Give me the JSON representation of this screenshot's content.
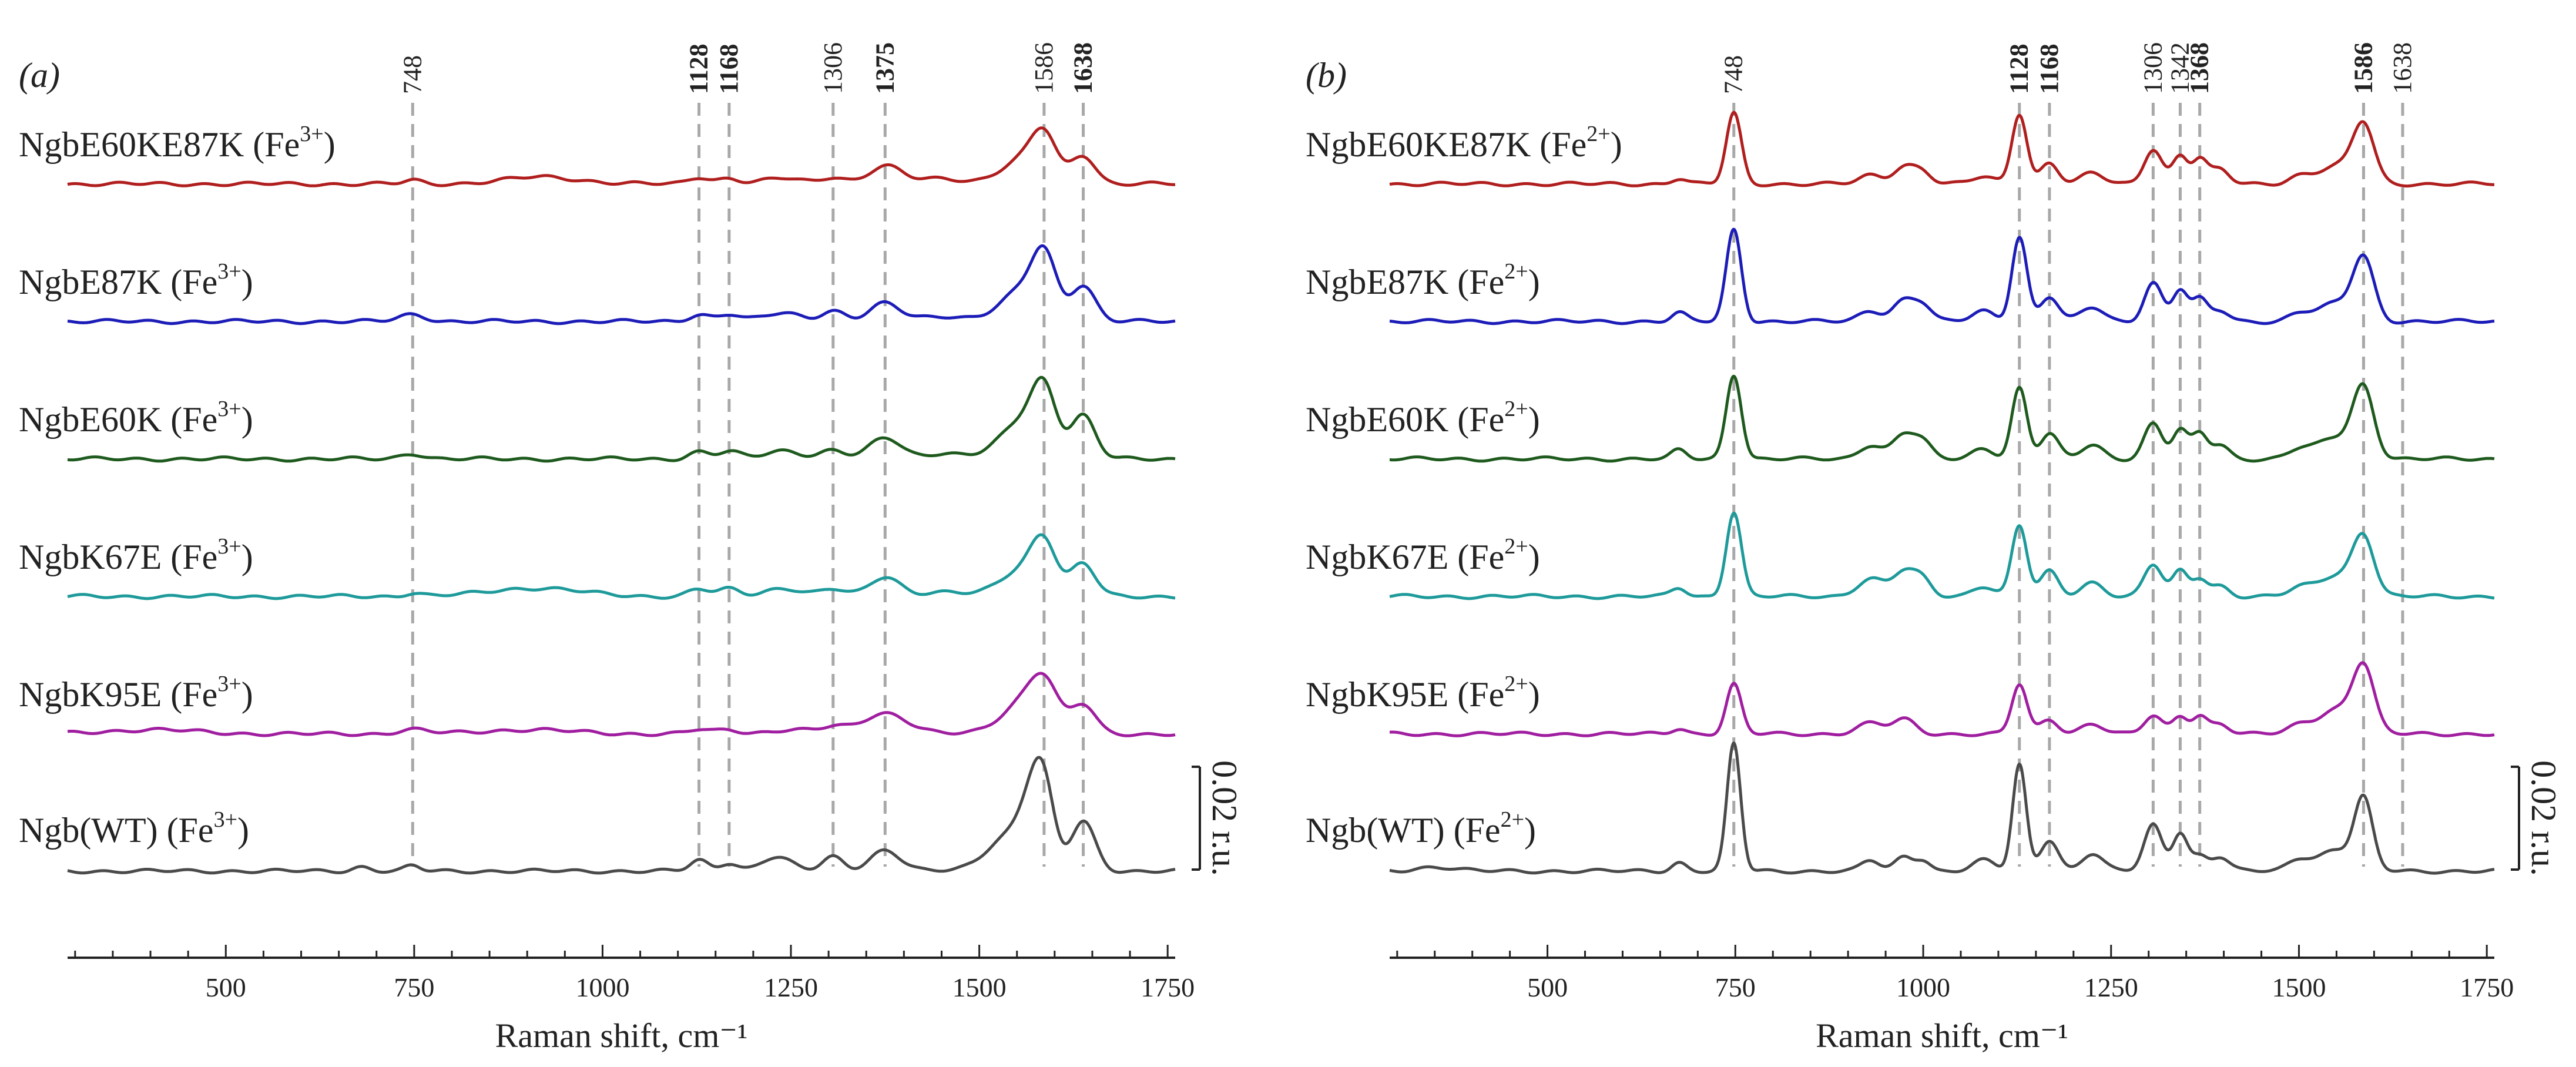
{
  "chart_data": [
    {
      "type": "line",
      "panel_label": "(a)",
      "xlabel": "Raman shift, cm⁻¹",
      "ylabel": "",
      "xlim": [
        290,
        1760
      ],
      "xticks": [
        500,
        750,
        1000,
        1250,
        1500,
        1750
      ],
      "xtick_labels": [
        "500",
        "750",
        "1000",
        "1250",
        "1500",
        "1750"
      ],
      "scale_bar_label": "0.02 r.u.",
      "scale_bar_value": 0.02,
      "peak_lines": [
        {
          "x": 748,
          "label": "748",
          "bold": false
        },
        {
          "x": 1128,
          "label": "1128",
          "bold": true
        },
        {
          "x": 1168,
          "label": "1168",
          "bold": true
        },
        {
          "x": 1306,
          "label": "1306",
          "bold": false
        },
        {
          "x": 1375,
          "label": "1375",
          "bold": true
        },
        {
          "x": 1586,
          "label": "1586",
          "bold": false
        },
        {
          "x": 1638,
          "label": "1638",
          "bold": true
        }
      ],
      "series": [
        {
          "name": "NgbE60KE87K",
          "ion": "Fe",
          "charge": "3+",
          "color": "#b01e1e",
          "baseline": 0.2,
          "peaks": [
            [
              748,
              0.05,
              12
            ],
            [
              920,
              0.1,
              50
            ],
            [
              1128,
              0.1,
              14
            ],
            [
              1168,
              0.08,
              14
            ],
            [
              1240,
              0.08,
              25
            ],
            [
              1306,
              0.1,
              16
            ],
            [
              1375,
              0.25,
              22
            ],
            [
              1450,
              0.08,
              30
            ],
            [
              1560,
              0.35,
              30
            ],
            [
              1586,
              0.55,
              16
            ],
            [
              1638,
              0.4,
              16
            ]
          ]
        },
        {
          "name": "NgbE87K",
          "ion": "Fe",
          "charge": "3+",
          "color": "#1c1cb8",
          "baseline": 0.2,
          "peaks": [
            [
              748,
              0.1,
              18
            ],
            [
              1128,
              0.1,
              14
            ],
            [
              1168,
              0.1,
              14
            ],
            [
              1240,
              0.12,
              25
            ],
            [
              1306,
              0.15,
              16
            ],
            [
              1375,
              0.25,
              20
            ],
            [
              1450,
              0.08,
              30
            ],
            [
              1560,
              0.45,
              30
            ],
            [
              1586,
              0.75,
              16
            ],
            [
              1638,
              0.5,
              16
            ]
          ]
        },
        {
          "name": "NgbE60K",
          "ion": "Fe",
          "charge": "3+",
          "color": "#1e5a1e",
          "baseline": 0.2,
          "peaks": [
            [
              748,
              0.08,
              15
            ],
            [
              1128,
              0.1,
              14
            ],
            [
              1168,
              0.1,
              14
            ],
            [
              1240,
              0.12,
              25
            ],
            [
              1306,
              0.12,
              16
            ],
            [
              1375,
              0.3,
              20
            ],
            [
              1450,
              0.08,
              30
            ],
            [
              1560,
              0.55,
              30
            ],
            [
              1586,
              0.75,
              16
            ],
            [
              1638,
              0.6,
              16
            ]
          ]
        },
        {
          "name": "NgbK67E",
          "ion": "Fe",
          "charge": "3+",
          "color": "#1e9a9a",
          "baseline": 0.2,
          "peaks": [
            [
              748,
              0.05,
              12
            ],
            [
              910,
              0.12,
              60
            ],
            [
              1128,
              0.1,
              14
            ],
            [
              1168,
              0.1,
              14
            ],
            [
              1240,
              0.12,
              25
            ],
            [
              1306,
              0.1,
              16
            ],
            [
              1375,
              0.28,
              20
            ],
            [
              1450,
              0.06,
              30
            ],
            [
              1560,
              0.4,
              30
            ],
            [
              1586,
              0.6,
              16
            ],
            [
              1638,
              0.45,
              16
            ]
          ]
        },
        {
          "name": "NgbK95E",
          "ion": "Fe",
          "charge": "3+",
          "color": "#a01ea0",
          "baseline": 0.2,
          "peaks": [
            [
              400,
              0.06,
              60
            ],
            [
              748,
              0.06,
              20
            ],
            [
              900,
              0.06,
              60
            ],
            [
              1128,
              0.06,
              14
            ],
            [
              1168,
              0.06,
              14
            ],
            [
              1250,
              0.06,
              30
            ],
            [
              1306,
              0.08,
              16
            ],
            [
              1375,
              0.3,
              30
            ],
            [
              1560,
              0.45,
              30
            ],
            [
              1586,
              0.55,
              18
            ],
            [
              1638,
              0.4,
              16
            ]
          ]
        },
        {
          "name": "Ngb(WT)",
          "ion": "Fe",
          "charge": "3+",
          "color": "#4a4a4a",
          "baseline": 0.1,
          "peaks": [
            [
              680,
              0.06,
              12
            ],
            [
              748,
              0.07,
              10
            ],
            [
              1128,
              0.15,
              12
            ],
            [
              1168,
              0.12,
              12
            ],
            [
              1230,
              0.2,
              20
            ],
            [
              1306,
              0.2,
              14
            ],
            [
              1375,
              0.3,
              20
            ],
            [
              1540,
              0.5,
              30
            ],
            [
              1570,
              0.7,
              16
            ],
            [
              1586,
              0.9,
              14
            ],
            [
              1638,
              0.7,
              16
            ]
          ]
        }
      ]
    },
    {
      "type": "line",
      "panel_label": "(b)",
      "xlabel": "Raman shift, cm⁻¹",
      "ylabel": "",
      "xlim": [
        290,
        1760
      ],
      "xticks": [
        500,
        750,
        1000,
        1250,
        1500,
        1750
      ],
      "xtick_labels": [
        "500",
        "750",
        "1000",
        "1250",
        "1500",
        "1750"
      ],
      "scale_bar_label": "0.02 r.u.",
      "scale_bar_value": 0.02,
      "peak_lines": [
        {
          "x": 748,
          "label": "748",
          "bold": false
        },
        {
          "x": 1128,
          "label": "1128",
          "bold": true
        },
        {
          "x": 1168,
          "label": "1168",
          "bold": true
        },
        {
          "x": 1306,
          "label": "1306",
          "bold": false
        },
        {
          "x": 1342,
          "label": "1342",
          "bold": false
        },
        {
          "x": 1368,
          "label": "1368",
          "bold": true
        },
        {
          "x": 1586,
          "label": "1586",
          "bold": true
        },
        {
          "x": 1638,
          "label": "1638",
          "bold": false
        }
      ],
      "series": [
        {
          "name": "NgbE60KE87K",
          "ion": "Fe",
          "charge": "2+",
          "color": "#b01e1e",
          "baseline": 0.2,
          "peaks": [
            [
              675,
              0.08,
              10
            ],
            [
              748,
              1.0,
              10
            ],
            [
              930,
              0.12,
              15
            ],
            [
              975,
              0.25,
              15
            ],
            [
              1000,
              0.15,
              12
            ],
            [
              1080,
              0.1,
              15
            ],
            [
              1128,
              1.0,
              10
            ],
            [
              1168,
              0.3,
              12
            ],
            [
              1225,
              0.15,
              15
            ],
            [
              1306,
              0.5,
              12
            ],
            [
              1342,
              0.4,
              10
            ],
            [
              1368,
              0.35,
              10
            ],
            [
              1395,
              0.2,
              12
            ],
            [
              1500,
              0.1,
              15
            ],
            [
              1550,
              0.25,
              25
            ],
            [
              1586,
              0.8,
              14
            ]
          ]
        },
        {
          "name": "NgbE87K",
          "ion": "Fe",
          "charge": "2+",
          "color": "#1c1cb8",
          "baseline": 0.2,
          "peaks": [
            [
              675,
              0.12,
              10
            ],
            [
              748,
              1.3,
              10
            ],
            [
              930,
              0.15,
              15
            ],
            [
              975,
              0.3,
              15
            ],
            [
              1000,
              0.2,
              12
            ],
            [
              1080,
              0.15,
              15
            ],
            [
              1128,
              1.2,
              10
            ],
            [
              1168,
              0.35,
              12
            ],
            [
              1225,
              0.2,
              15
            ],
            [
              1306,
              0.55,
              12
            ],
            [
              1342,
              0.45,
              10
            ],
            [
              1368,
              0.3,
              10
            ],
            [
              1395,
              0.15,
              12
            ],
            [
              1500,
              0.1,
              15
            ],
            [
              1550,
              0.25,
              25
            ],
            [
              1586,
              0.85,
              14
            ]
          ]
        },
        {
          "name": "NgbE60K",
          "ion": "Fe",
          "charge": "2+",
          "color": "#1e5a1e",
          "baseline": 0.2,
          "peaks": [
            [
              675,
              0.12,
              10
            ],
            [
              748,
              1.2,
              10
            ],
            [
              930,
              0.2,
              15
            ],
            [
              975,
              0.35,
              15
            ],
            [
              1000,
              0.2,
              12
            ],
            [
              1080,
              0.15,
              15
            ],
            [
              1128,
              1.0,
              10
            ],
            [
              1168,
              0.35,
              12
            ],
            [
              1225,
              0.2,
              15
            ],
            [
              1306,
              0.5,
              12
            ],
            [
              1342,
              0.4,
              10
            ],
            [
              1368,
              0.35,
              10
            ],
            [
              1395,
              0.2,
              12
            ],
            [
              1500,
              0.12,
              15
            ],
            [
              1550,
              0.3,
              25
            ],
            [
              1586,
              0.95,
              14
            ]
          ]
        },
        {
          "name": "NgbK67E",
          "ion": "Fe",
          "charge": "2+",
          "color": "#1e9a9a",
          "baseline": 0.2,
          "peaks": [
            [
              675,
              0.12,
              10
            ],
            [
              748,
              1.2,
              10
            ],
            [
              930,
              0.25,
              18
            ],
            [
              975,
              0.35,
              15
            ],
            [
              1000,
              0.2,
              12
            ],
            [
              1080,
              0.15,
              15
            ],
            [
              1128,
              1.0,
              10
            ],
            [
              1168,
              0.35,
              12
            ],
            [
              1225,
              0.2,
              15
            ],
            [
              1306,
              0.45,
              12
            ],
            [
              1342,
              0.35,
              10
            ],
            [
              1368,
              0.25,
              10
            ],
            [
              1395,
              0.15,
              12
            ],
            [
              1500,
              0.1,
              15
            ],
            [
              1550,
              0.3,
              25
            ],
            [
              1586,
              0.8,
              14
            ]
          ]
        },
        {
          "name": "NgbK95E",
          "ion": "Fe",
          "charge": "2+",
          "color": "#a01ea0",
          "baseline": 0.2,
          "peaks": [
            [
              675,
              0.08,
              10
            ],
            [
              748,
              0.7,
              10
            ],
            [
              930,
              0.15,
              18
            ],
            [
              975,
              0.2,
              15
            ],
            [
              1128,
              0.7,
              10
            ],
            [
              1168,
              0.2,
              12
            ],
            [
              1225,
              0.15,
              15
            ],
            [
              1306,
              0.25,
              12
            ],
            [
              1342,
              0.25,
              10
            ],
            [
              1368,
              0.25,
              10
            ],
            [
              1395,
              0.15,
              12
            ],
            [
              1500,
              0.1,
              15
            ],
            [
              1550,
              0.35,
              25
            ],
            [
              1586,
              0.9,
              14
            ]
          ]
        },
        {
          "name": "Ngb(WT)",
          "ion": "Fe",
          "charge": "2+",
          "color": "#4a4a4a",
          "baseline": 0.1,
          "peaks": [
            [
              350,
              0.06,
              25
            ],
            [
              675,
              0.12,
              10
            ],
            [
              748,
              1.8,
              9
            ],
            [
              930,
              0.15,
              12
            ],
            [
              975,
              0.2,
              12
            ],
            [
              1000,
              0.15,
              10
            ],
            [
              1080,
              0.15,
              15
            ],
            [
              1128,
              1.5,
              9
            ],
            [
              1168,
              0.45,
              12
            ],
            [
              1225,
              0.25,
              14
            ],
            [
              1306,
              0.65,
              12
            ],
            [
              1342,
              0.55,
              10
            ],
            [
              1368,
              0.2,
              10
            ],
            [
              1395,
              0.2,
              12
            ],
            [
              1500,
              0.15,
              15
            ],
            [
              1550,
              0.3,
              25
            ],
            [
              1586,
              0.95,
              12
            ]
          ]
        }
      ]
    }
  ]
}
